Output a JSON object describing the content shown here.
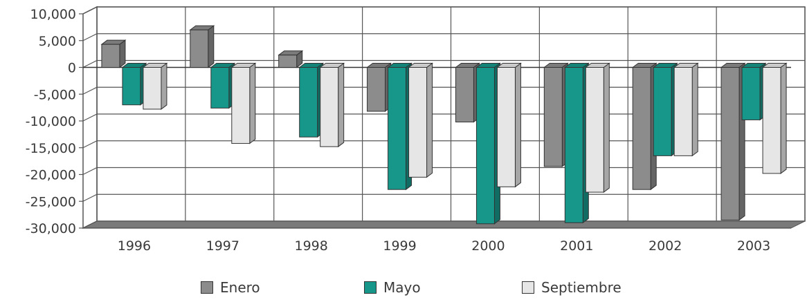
{
  "chart_data": {
    "type": "bar",
    "categories": [
      "1996",
      "1997",
      "1998",
      "1999",
      "2000",
      "2001",
      "2002",
      "2003"
    ],
    "series": [
      {
        "name": "Enero",
        "color": "#8c8c8c",
        "values": [
          4300,
          7000,
          2300,
          -8200,
          -10200,
          -18500,
          -22800,
          -28500
        ]
      },
      {
        "name": "Mayo",
        "color": "#17968a",
        "values": [
          -7000,
          -7600,
          -13000,
          -22800,
          -29200,
          -29000,
          -16500,
          -9800
        ]
      },
      {
        "name": "Septiembre",
        "color": "#e6e6e6",
        "values": [
          -7800,
          -14200,
          -14800,
          -20500,
          -22300,
          -23300,
          -16500,
          -19800
        ]
      }
    ],
    "ylim": [
      -30000,
      10000
    ],
    "yticks": [
      10000,
      5000,
      0,
      -5000,
      -10000,
      -15000,
      -20000,
      -25000,
      -30000
    ],
    "ytick_labels": [
      "10,000",
      "5,000",
      "0",
      "-5,000",
      "-10,000",
      "-15,000",
      "-20,000",
      "-25,000",
      "-30,000"
    ],
    "grid": true,
    "legend_position": "bottom"
  }
}
